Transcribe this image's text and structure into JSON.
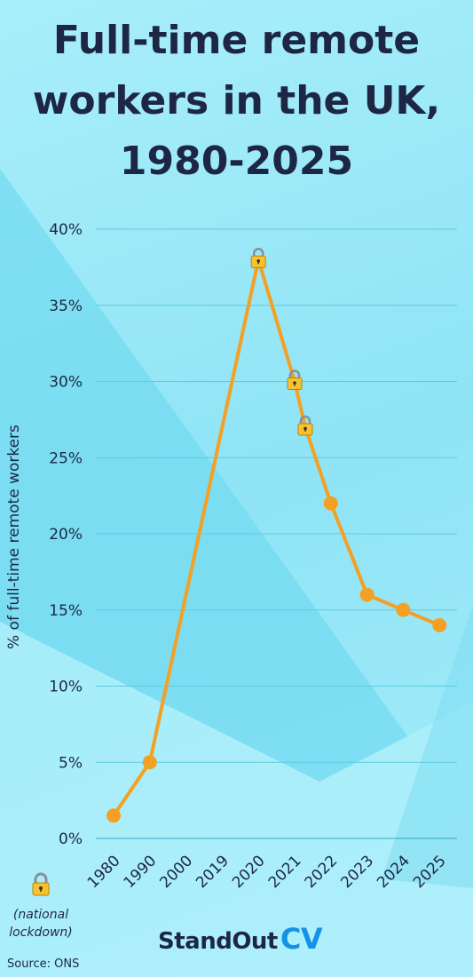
{
  "title_lines": [
    "Full-time remote",
    "workers in the UK,",
    "1980-2025"
  ],
  "colors": {
    "line": "#f4a025",
    "text": "#1d2744",
    "grid": "#5fcbe0",
    "background": "#a9eefb",
    "brand_cv": "#1592e8"
  },
  "legend": {
    "icon": "lock-icon",
    "text_lines": [
      "(national",
      "lockdown)"
    ]
  },
  "logo": {
    "main": "StandOut",
    "accent": "CV"
  },
  "source": "Source: ONS",
  "chart_data": {
    "type": "line",
    "title": "Full-time remote workers in the UK, 1980-2025",
    "xlabel": "",
    "ylabel": "% of full-time remote workers",
    "categories": [
      "1980",
      "1990",
      "2000",
      "2019",
      "2020",
      "2021",
      "2022",
      "2023",
      "2024",
      "2025"
    ],
    "y_ticks": [
      "0%",
      "5%",
      "10%",
      "15%",
      "20%",
      "25%",
      "30%",
      "35%",
      "40%"
    ],
    "ylim": [
      0,
      40
    ],
    "grid": true,
    "series": [
      {
        "values": [
          {
            "x": "1980",
            "y": 1.5,
            "marker": "dot"
          },
          {
            "x": "1990",
            "y": 5,
            "marker": "dot"
          },
          {
            "x": "2020",
            "y": 38,
            "marker": "lock"
          },
          {
            "x": "2021",
            "y": 30,
            "marker": "lock"
          },
          {
            "x": "2021",
            "y": 27,
            "marker": "lock"
          },
          {
            "x": "2022",
            "y": 22,
            "marker": "dot"
          },
          {
            "x": "2023",
            "y": 16,
            "marker": "dot"
          },
          {
            "x": "2024",
            "y": 15,
            "marker": "dot"
          },
          {
            "x": "2025",
            "y": 14,
            "marker": "dot"
          }
        ]
      }
    ]
  }
}
